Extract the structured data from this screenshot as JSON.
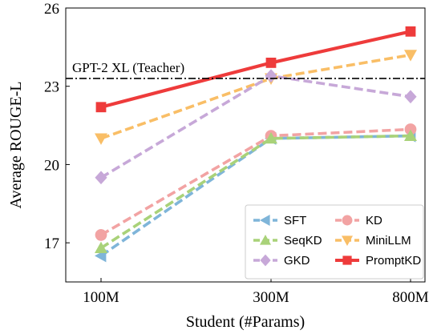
{
  "chart_data": {
    "type": "line",
    "xlabel": "Student (#Params)",
    "ylabel": "Average ROUGE-L",
    "categories": [
      "100M",
      "300M",
      "800M"
    ],
    "ylim": [
      15.5,
      26
    ],
    "yticks": [
      17,
      20,
      23,
      26
    ],
    "grid": false,
    "legend": {
      "placement": "bottom-right",
      "columns": 2
    },
    "reference_line": {
      "label": "GPT-2 XL (Teacher)",
      "value": 23.3
    },
    "series": [
      {
        "name": "SFT",
        "values": [
          16.5,
          21.0,
          21.1
        ],
        "color": "#7fb5d9",
        "marker": "triangle-left",
        "dash": "dashed"
      },
      {
        "name": "KD",
        "values": [
          17.3,
          21.1,
          21.35
        ],
        "color": "#f2a3a3",
        "marker": "circle",
        "dash": "dashed"
      },
      {
        "name": "SeqKD",
        "values": [
          16.8,
          21.0,
          21.1
        ],
        "color": "#a9d279",
        "marker": "triangle-up",
        "dash": "dashed"
      },
      {
        "name": "MiniLLM",
        "values": [
          21.0,
          23.3,
          24.2
        ],
        "color": "#f9be66",
        "marker": "triangle-down",
        "dash": "dashed"
      },
      {
        "name": "GKD",
        "values": [
          19.5,
          23.4,
          22.6
        ],
        "color": "#c7a8d8",
        "marker": "diamond",
        "dash": "dashed"
      },
      {
        "name": "PromptKD",
        "values": [
          22.2,
          23.9,
          25.1
        ],
        "color": "#ee3b3b",
        "marker": "square",
        "dash": "solid"
      }
    ]
  }
}
